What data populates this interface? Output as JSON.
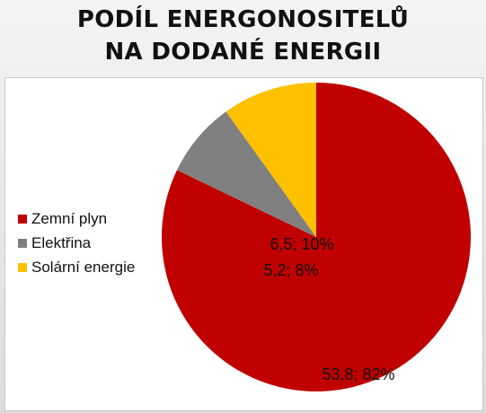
{
  "title_line1": "PODÍL ENERGONOSITELŮ",
  "title_line2": "NA DODANÉ ENERGII",
  "chart_data": {
    "type": "pie",
    "title": "PODÍL ENERGONOSITELŮ NA DODANÉ ENERGII",
    "slices": [
      {
        "name": "Zemní plyn",
        "value": 53.8,
        "percent": 82,
        "label": "53,8; 82%",
        "color": "#c00000"
      },
      {
        "name": "Elektřina",
        "value": 5.2,
        "percent": 8,
        "label": "5,2; 8%",
        "color": "#808080"
      },
      {
        "name": "Solární energie",
        "value": 6.5,
        "percent": 10,
        "label": "6,5; 10%",
        "color": "#ffc000"
      }
    ],
    "legend": "left"
  }
}
